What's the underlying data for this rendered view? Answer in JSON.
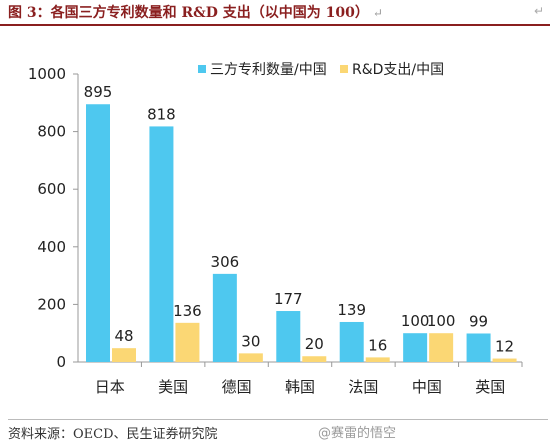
{
  "figure": {
    "title": "图 3：各国三方专利数量和 R&D 支出（以中国为 100）",
    "title_mark": "↵",
    "corner_mark": "↵",
    "source": "资料来源：OECD、民生证券研究院",
    "watermark": "@赛雷的悟空"
  },
  "colors": {
    "patents": "#4ec8ef",
    "rnd": "#fbd774",
    "axis": "#999999",
    "text": "#222222",
    "title": "#8a1f1f"
  },
  "chart_data": {
    "type": "bar",
    "categories": [
      "日本",
      "美国",
      "德国",
      "韩国",
      "法国",
      "中国",
      "英国"
    ],
    "series": [
      {
        "name": "三方专利数量/中国",
        "values": [
          895,
          818,
          306,
          177,
          139,
          100,
          99
        ]
      },
      {
        "name": "R&D支出/中国",
        "values": [
          48,
          136,
          30,
          20,
          16,
          100,
          12
        ]
      }
    ],
    "ylim": [
      0,
      1000
    ],
    "yticks": [
      0,
      200,
      400,
      600,
      800,
      1000
    ],
    "grid": false,
    "legend": "top-right"
  }
}
